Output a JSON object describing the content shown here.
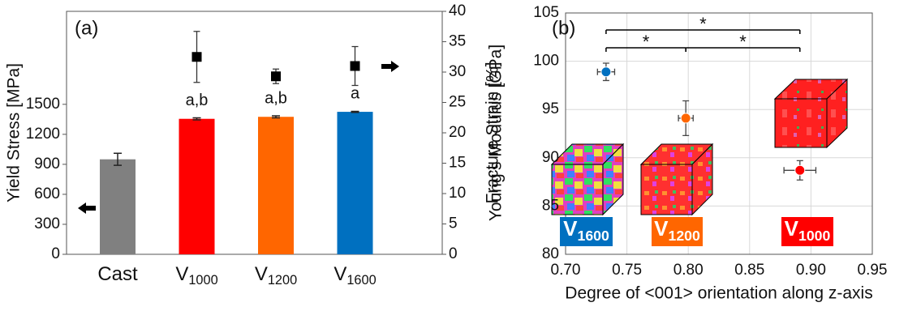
{
  "chart_data": [
    {
      "type": "bar",
      "label": "(a)",
      "ylabel": "Yield Stress [MPa]",
      "y2label": "Fracture Strain [%]",
      "categories": [
        {
          "text": "Cast"
        },
        {
          "text": "V",
          "sub": "1000"
        },
        {
          "text": "V",
          "sub": "1200"
        },
        {
          "text": "V",
          "sub": "1600"
        }
      ],
      "ylim": [
        0,
        2430
      ],
      "yticks": [
        0,
        300,
        600,
        900,
        1200,
        1500
      ],
      "y2lim": [
        0,
        40
      ],
      "y2ticks": [
        0,
        5,
        10,
        15,
        20,
        25,
        30,
        35,
        40
      ],
      "series": [
        {
          "values": [
            950,
            1355,
            1375,
            1425
          ],
          "errors": [
            60,
            10,
            10,
            5
          ],
          "colors": [
            "#808080",
            "#ff0000",
            "#ff6600",
            "#0070c0"
          ]
        },
        {
          "axis": "y2",
          "values": [
            null,
            32.5,
            29.3,
            31
          ],
          "errors": [
            null,
            4.2,
            1.2,
            3.2
          ],
          "color": "#000000",
          "marker": "square"
        }
      ],
      "bar_annotations": [
        null,
        "a,b",
        "a,b",
        "a"
      ]
    },
    {
      "type": "scatter",
      "label": "(b)",
      "xlabel": "Degree of <001> orientation along z-axis",
      "ylabel": "Young’s Modulus [GPa]",
      "xlim": [
        0.7,
        0.95
      ],
      "xticks": [
        {
          "value": 0.7,
          "label": "0.70"
        },
        {
          "value": 0.75,
          "label": "0.75"
        },
        {
          "value": 0.8,
          "label": "0.80"
        },
        {
          "value": 0.85,
          "label": "0.85"
        },
        {
          "value": 0.9,
          "label": "0.90"
        },
        {
          "value": 0.95,
          "label": "0.95"
        }
      ],
      "ylim": [
        80,
        105
      ],
      "yticks": [
        80,
        85,
        90,
        95,
        100,
        105
      ],
      "grid": true,
      "x": [
        0.733,
        0.798,
        0.891
      ],
      "values": [
        98.9,
        94.1,
        88.7
      ],
      "xerr": [
        0.007,
        0.006,
        0.013
      ],
      "yerr": [
        0.9,
        1.8,
        1.0
      ],
      "colors": [
        "#0070c0",
        "#ff6600",
        "#ff0000"
      ],
      "point_labels": [
        {
          "text": "V",
          "sub": "1600"
        },
        {
          "text": "V",
          "sub": "1200"
        },
        {
          "text": "V",
          "sub": "1000"
        }
      ],
      "significance": [
        {
          "between": [
            0,
            2
          ],
          "label": "*"
        },
        {
          "between": [
            0,
            1
          ],
          "label": "*"
        },
        {
          "between": [
            1,
            2
          ],
          "label": "*"
        }
      ]
    }
  ]
}
